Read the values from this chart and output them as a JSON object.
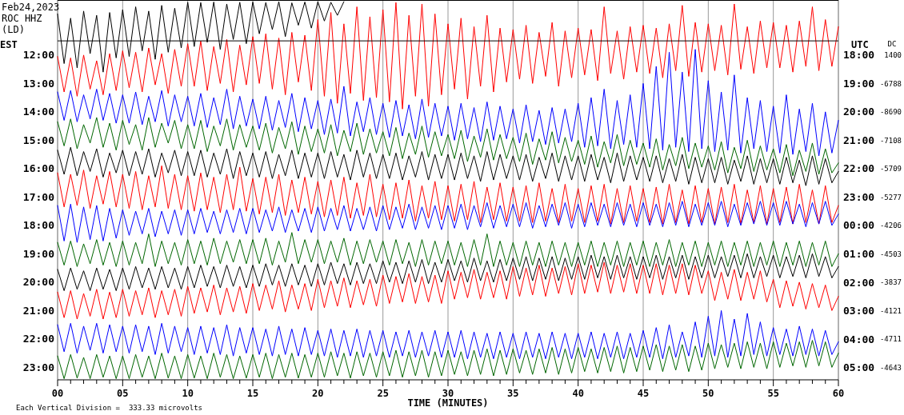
{
  "chart_data": {
    "type": "line",
    "title": "Feb24,2023",
    "subtitle": "ROC HHZ\n(LD)",
    "xlabel": "TIME (MINUTES)",
    "ylabel": "EST",
    "y2label": "UTC",
    "y3label": "DC",
    "annotations": [
      "Each Vertical Division =  333.33 microvolts",
      "1400",
      "-6788",
      "-8690",
      "-7108",
      "-5709",
      "-5277",
      "-4206",
      "-4503",
      "-3837",
      "-4121",
      "-4711",
      "-4643"
    ],
    "grid": "x",
    "xlim": [
      0,
      60
    ],
    "xticks": [
      {
        "value": 0,
        "label": "00"
      },
      {
        "value": 1,
        "label": null
      },
      {
        "value": 2,
        "label": null
      },
      {
        "value": 3,
        "label": null
      },
      {
        "value": 4,
        "label": null
      },
      {
        "value": 5,
        "label": "05"
      },
      {
        "value": 6,
        "label": null
      },
      {
        "value": 7,
        "label": null
      },
      {
        "value": 8,
        "label": null
      },
      {
        "value": 9,
        "label": null
      },
      10,
      {
        "value": 11,
        "label": null
      },
      {
        "value": 12,
        "label": null
      },
      {
        "value": 13,
        "label": null
      },
      {
        "value": 14,
        "label": null
      },
      15,
      {
        "value": 16,
        "label": null
      },
      {
        "value": 17,
        "label": null
      },
      {
        "value": 18,
        "label": null
      },
      {
        "value": 19,
        "label": null
      },
      20,
      {
        "value": 21,
        "label": null
      },
      {
        "value": 22,
        "label": null
      },
      {
        "value": 23,
        "label": null
      },
      {
        "value": 24,
        "label": null
      },
      25,
      {
        "value": 26,
        "label": null
      },
      {
        "value": 27,
        "label": null
      },
      {
        "value": 28,
        "label": null
      },
      {
        "value": 29,
        "label": null
      },
      30,
      {
        "value": 31,
        "label": null
      },
      {
        "value": 32,
        "label": null
      },
      {
        "value": 33,
        "label": null
      },
      {
        "value": 34,
        "label": null
      },
      35,
      {
        "value": 36,
        "label": null
      },
      {
        "value": 37,
        "label": null
      },
      {
        "value": 38,
        "label": null
      },
      {
        "value": 39,
        "label": null
      },
      40,
      {
        "value": 41,
        "label": null
      },
      {
        "value": 42,
        "label": null
      },
      {
        "value": 43,
        "label": null
      },
      {
        "value": 44,
        "label": null
      },
      45,
      {
        "value": 46,
        "label": null
      },
      {
        "value": 47,
        "label": null
      },
      {
        "value": 48,
        "label": null
      },
      {
        "value": 49,
        "label": null
      },
      50,
      {
        "value": 51,
        "label": null
      },
      {
        "value": 52,
        "label": null
      },
      {
        "value": 53,
        "label": null
      },
      {
        "value": 54,
        "label": null
      },
      55,
      {
        "value": 56,
        "label": null
      },
      {
        "value": 57,
        "label": null
      },
      {
        "value": 58,
        "label": null
      },
      {
        "value": 59,
        "label": null
      },
      60
    ],
    "ylim": [
      23.44,
      10.06
    ],
    "yticks": [
      {
        "value": 12,
        "label": "12:00"
      },
      {
        "value": 13,
        "label": "13:00"
      },
      {
        "value": 14,
        "label": "14:00"
      },
      {
        "value": 15,
        "label": "15:00"
      },
      {
        "value": 16,
        "label": "16:00"
      },
      {
        "value": 17,
        "label": "17:00"
      },
      {
        "value": 18,
        "label": "18:00"
      },
      {
        "value": 19,
        "label": "19:00"
      },
      {
        "value": 20,
        "label": "20:00"
      },
      {
        "value": 21,
        "label": "21:00"
      },
      {
        "value": 22,
        "label": "22:00"
      },
      {
        "value": 23,
        "label": "23:00"
      }
    ],
    "y2lim": [
      "2023-02-25T05:26",
      "2023-02-24T16:04"
    ],
    "y2ticks": [
      {
        "value": "2023-02-24T18:00",
        "label": "18:00"
      },
      {
        "value": "2023-02-24T19:00",
        "label": "19:00"
      },
      {
        "value": "2023-02-24T20:00",
        "label": "20:00"
      },
      {
        "value": "2023-02-24T21:00",
        "label": "21:00"
      },
      {
        "value": "2023-02-24T22:00",
        "label": "22:00"
      },
      {
        "value": "2023-02-24T23:00",
        "label": "23:00"
      },
      {
        "value": "2023-02-25T00:00",
        "label": "00:00"
      },
      {
        "value": "2023-02-25T01:00",
        "label": "01:00"
      },
      {
        "value": "2023-02-25T02:00",
        "label": "02:00"
      },
      {
        "value": "2023-02-25T03:00",
        "label": "03:00"
      },
      {
        "value": "2023-02-25T04:00",
        "label": "04:00"
      },
      {
        "value": "2023-02-25T05:00",
        "label": "05:00"
      }
    ],
    "ref_lines": [
      {
        "axis": "y",
        "value": 11.5,
        "color": "#000000"
      }
    ],
    "x": [
      0,
      0.5,
      1,
      1.5,
      2,
      2.5,
      3,
      3.5,
      4,
      4.5,
      5,
      5.5,
      6,
      6.5,
      7,
      7.5,
      8,
      8.5,
      9,
      9.5,
      10,
      10.5,
      11,
      11.5,
      12,
      12.5,
      13,
      13.5,
      14,
      14.5,
      15,
      15.5,
      16,
      16.5,
      17,
      17.5,
      18,
      18.5,
      19,
      19.5,
      20,
      20.5,
      21,
      21.5,
      22,
      22.5,
      23,
      23.5,
      24,
      24.5,
      25,
      25.5,
      26,
      26.5,
      27,
      27.5,
      28,
      28.5,
      29,
      29.5,
      30,
      30.5,
      31,
      31.5,
      32,
      32.5,
      33,
      33.5,
      34,
      34.5,
      35,
      35.5,
      36,
      36.5,
      37,
      37.5,
      38,
      38.5,
      39,
      39.5,
      40,
      40.5,
      41,
      41.5,
      42,
      42.5,
      43,
      43.5,
      44,
      44.5,
      45,
      45.5,
      46,
      46.5,
      47,
      47.5,
      48,
      48.5,
      49,
      49.5,
      50,
      50.5,
      51,
      51.5,
      52,
      52.5,
      53,
      53.5,
      54,
      54.5,
      55,
      55.5,
      56,
      56.5,
      57,
      57.5,
      58,
      58.5,
      59,
      59.5,
      60
    ],
    "series": [
      {
        "color": "#000000",
        "x": [
          0,
          0.5,
          1,
          1.5,
          2,
          2.5,
          3,
          3.5,
          4,
          4.5,
          5,
          5.5,
          6,
          6.5,
          7,
          7.5,
          8,
          8.5,
          9,
          9.5,
          10,
          10.5,
          11,
          11.5,
          12,
          12.5,
          13,
          13.5,
          14,
          14.5,
          15,
          15.5,
          16,
          16.5,
          17,
          17.5,
          18,
          18.5,
          19,
          19.5,
          20,
          20.5,
          21,
          21.5,
          22
        ],
        "values": [
          10.55,
          12.3,
          10.7,
          12.45,
          10.45,
          11.95,
          10.6,
          12.6,
          10.5,
          12.1,
          10.4,
          12.05,
          10.3,
          11.85,
          10.45,
          12.15,
          10.25,
          11.9,
          10.35,
          11.75,
          10.14,
          11.7,
          10.15,
          11.55,
          10.13,
          11.8,
          10.2,
          11.45,
          10.14,
          11.6,
          10.13,
          11.25,
          10.15,
          11.1,
          10.12,
          11.35,
          10.16,
          10.95,
          10.13,
          11.05,
          10.12,
          10.8,
          10.14,
          10.6,
          10.12
        ]
      },
      {
        "color": "#ff0000",
        "values": [
          12.05,
          13.3,
          12.1,
          13.45,
          12.0,
          13.2,
          12.2,
          13.4,
          11.95,
          13.25,
          11.85,
          13.15,
          11.9,
          13.3,
          11.75,
          13.05,
          11.95,
          13.35,
          11.8,
          13.1,
          11.6,
          13.1,
          11.5,
          13.25,
          11.7,
          13.0,
          11.45,
          13.3,
          11.65,
          13.05,
          11.35,
          13.0,
          11.25,
          13.2,
          11.4,
          13.4,
          11.2,
          12.95,
          11.3,
          13.25,
          10.75,
          13.45,
          10.5,
          13.7,
          10.9,
          13.35,
          10.3,
          13.6,
          10.65,
          13.5,
          10.4,
          13.65,
          10.15,
          13.9,
          10.6,
          13.45,
          10.2,
          13.8,
          10.55,
          13.4,
          10.9,
          13.2,
          10.7,
          13.55,
          11.0,
          13.1,
          10.6,
          13.3,
          11.05,
          12.95,
          11.1,
          12.85,
          10.95,
          13.0,
          11.2,
          12.75,
          10.85,
          13.1,
          11.15,
          12.8,
          11.05,
          12.7,
          11.1,
          12.9,
          10.3,
          12.65,
          11.15,
          12.85,
          11.0,
          12.6,
          10.95,
          12.65,
          11.05,
          12.8,
          10.9,
          12.55,
          10.25,
          12.75,
          10.85,
          12.6,
          10.9,
          12.55,
          10.95,
          12.7,
          10.2,
          12.5,
          11.0,
          12.65,
          10.8,
          12.45,
          10.85,
          12.45,
          10.95,
          12.6,
          10.8,
          12.4,
          10.3,
          12.55,
          10.75,
          12.4,
          11.0
        ]
      },
      {
        "color": "#0000ff",
        "values": [
          13.3,
          14.3,
          13.25,
          14.35,
          13.4,
          14.25,
          13.2,
          14.3,
          13.35,
          14.4,
          13.4,
          14.4,
          13.3,
          14.45,
          13.45,
          14.35,
          13.25,
          14.5,
          13.4,
          14.35,
          13.45,
          14.5,
          13.35,
          14.55,
          13.5,
          14.45,
          13.2,
          14.6,
          13.45,
          14.5,
          13.55,
          14.6,
          13.45,
          14.65,
          13.6,
          14.55,
          13.35,
          14.7,
          13.5,
          14.6,
          13.6,
          14.8,
          13.55,
          14.75,
          13.1,
          14.85,
          13.65,
          14.7,
          13.5,
          14.8,
          13.7,
          14.9,
          13.6,
          14.85,
          13.75,
          14.95,
          13.55,
          14.9,
          13.7,
          14.85,
          13.8,
          15.0,
          13.7,
          14.95,
          13.85,
          15.05,
          13.65,
          15.0,
          13.8,
          14.95,
          13.9,
          15.1,
          13.75,
          15.05,
          13.95,
          15.15,
          13.85,
          15.1,
          13.9,
          15.05,
          13.7,
          15.25,
          13.5,
          15.2,
          13.2,
          15.3,
          13.6,
          15.15,
          13.4,
          15.25,
          13.0,
          15.3,
          12.4,
          15.35,
          11.9,
          15.25,
          12.6,
          15.4,
          11.8,
          15.3,
          12.9,
          15.4,
          13.3,
          15.35,
          12.7,
          15.45,
          13.5,
          15.3,
          13.6,
          15.4,
          13.8,
          15.45,
          13.4,
          15.5,
          13.9,
          15.4,
          13.7,
          15.55,
          14.0,
          15.45,
          14.3
        ]
      },
      {
        "color": "#006600",
        "values": [
          14.35,
          15.2,
          14.25,
          15.3,
          14.45,
          15.1,
          14.2,
          15.25,
          14.4,
          15.35,
          14.3,
          15.15,
          14.45,
          15.35,
          14.2,
          15.25,
          14.4,
          15.1,
          14.3,
          15.3,
          14.45,
          15.3,
          14.3,
          15.4,
          14.5,
          15.2,
          14.25,
          15.35,
          14.45,
          15.25,
          14.5,
          15.35,
          14.4,
          15.45,
          14.55,
          15.3,
          14.35,
          15.5,
          14.5,
          15.4,
          14.6,
          15.45,
          14.45,
          15.55,
          14.65,
          15.4,
          14.4,
          15.5,
          14.6,
          15.45,
          14.7,
          15.55,
          14.55,
          15.65,
          14.75,
          15.5,
          14.5,
          15.6,
          14.7,
          15.55,
          14.8,
          15.65,
          14.65,
          15.75,
          14.85,
          15.6,
          14.6,
          15.7,
          14.8,
          15.65,
          14.9,
          15.75,
          14.75,
          15.85,
          14.95,
          15.7,
          14.7,
          15.8,
          14.9,
          15.75,
          15.0,
          15.85,
          14.85,
          15.95,
          15.05,
          15.8,
          14.8,
          15.9,
          15.0,
          15.85,
          15.1,
          15.95,
          14.95,
          16.05,
          15.15,
          15.9,
          14.9,
          16.0,
          15.1,
          15.95,
          15.2,
          16.05,
          15.05,
          16.15,
          15.25,
          16.0,
          15.0,
          16.1,
          15.2,
          16.05,
          15.3,
          16.15,
          15.15,
          16.25,
          15.35,
          16.1,
          15.1,
          16.2,
          15.3,
          16.15,
          15.8
        ]
      },
      {
        "color": "#000000",
        "values": [
          15.35,
          16.2,
          15.25,
          16.25,
          15.4,
          16.1,
          15.3,
          16.3,
          15.45,
          16.15,
          15.35,
          16.25,
          15.4,
          16.2,
          15.3,
          16.3,
          15.45,
          16.15,
          15.35,
          16.25,
          15.4,
          16.25,
          15.35,
          16.3,
          15.45,
          16.2,
          15.3,
          16.35,
          15.4,
          16.25,
          15.45,
          16.3,
          15.4,
          16.35,
          15.5,
          16.25,
          15.35,
          16.35,
          15.45,
          16.3,
          15.45,
          16.35,
          15.4,
          16.3,
          15.5,
          16.4,
          15.35,
          16.3,
          15.45,
          16.35,
          15.5,
          16.35,
          15.45,
          16.4,
          15.55,
          16.3,
          15.4,
          16.4,
          15.5,
          16.35,
          15.5,
          16.4,
          15.45,
          16.35,
          15.55,
          16.45,
          15.4,
          16.4,
          15.5,
          16.35,
          15.55,
          16.4,
          15.5,
          16.45,
          15.6,
          16.35,
          15.45,
          16.45,
          15.55,
          16.4,
          15.55,
          16.45,
          15.5,
          16.4,
          15.6,
          16.5,
          15.45,
          16.45,
          15.55,
          16.4,
          15.6,
          16.45,
          15.55,
          16.5,
          15.65,
          16.45,
          15.5,
          16.55,
          15.6,
          16.5,
          15.65,
          16.5,
          15.6,
          16.55,
          15.7,
          16.45,
          15.55,
          16.55,
          15.65,
          16.5,
          15.65,
          16.55,
          15.6,
          16.5,
          15.7,
          16.6,
          15.55,
          16.55,
          15.65,
          16.5,
          16.1
        ]
      },
      {
        "color": "#ff0000",
        "values": [
          16.15,
          17.35,
          16.2,
          17.3,
          16.05,
          17.4,
          16.25,
          17.25,
          16.1,
          17.35,
          16.2,
          17.4,
          16.1,
          17.45,
          16.25,
          17.35,
          15.9,
          17.4,
          16.2,
          17.45,
          16.25,
          17.5,
          16.15,
          17.45,
          16.3,
          17.55,
          16.2,
          17.45,
          15.95,
          17.5,
          16.35,
          17.6,
          16.3,
          17.55,
          16.2,
          17.65,
          16.4,
          17.55,
          16.3,
          17.6,
          16.45,
          17.7,
          16.4,
          17.65,
          16.3,
          17.75,
          16.5,
          17.65,
          16.2,
          17.7,
          16.55,
          17.8,
          16.5,
          17.75,
          16.4,
          17.85,
          16.6,
          17.75,
          16.45,
          17.8,
          16.6,
          17.85,
          16.55,
          17.8,
          16.45,
          17.9,
          16.65,
          17.8,
          16.5,
          17.85,
          16.65,
          17.85,
          16.6,
          17.9,
          16.5,
          17.85,
          16.7,
          17.9,
          16.55,
          17.85,
          16.7,
          17.9,
          16.6,
          17.85,
          16.55,
          17.95,
          16.7,
          17.9,
          16.6,
          17.85,
          16.7,
          17.9,
          16.65,
          17.95,
          16.55,
          17.9,
          16.75,
          17.95,
          16.6,
          17.9,
          16.7,
          17.95,
          16.65,
          17.9,
          16.55,
          17.95,
          16.75,
          17.9,
          16.6,
          17.95,
          16.7,
          17.9,
          16.65,
          17.95,
          16.55,
          17.9,
          16.75,
          17.95,
          16.6,
          17.9,
          17.3
        ]
      },
      {
        "color": "#0000ff",
        "values": [
          17.3,
          18.55,
          17.25,
          18.6,
          17.35,
          18.5,
          17.3,
          18.55,
          17.4,
          18.45,
          17.45,
          18.35,
          17.5,
          18.3,
          17.4,
          18.4,
          17.5,
          18.3,
          17.45,
          18.35,
          17.45,
          18.3,
          17.4,
          18.25,
          17.5,
          18.3,
          17.45,
          18.25,
          17.4,
          18.3,
          17.4,
          18.25,
          17.45,
          18.2,
          17.35,
          18.25,
          17.45,
          18.2,
          17.4,
          18.25,
          17.35,
          18.2,
          17.4,
          18.15,
          17.3,
          18.2,
          17.4,
          18.15,
          17.35,
          18.2,
          17.3,
          18.15,
          17.35,
          18.1,
          17.25,
          18.15,
          17.35,
          18.1,
          17.3,
          18.15,
          17.3,
          18.1,
          17.25,
          18.15,
          17.3,
          18.05,
          17.2,
          18.1,
          17.3,
          18.05,
          17.25,
          18.05,
          17.2,
          18.1,
          17.3,
          18.05,
          17.25,
          18.0,
          17.2,
          18.1,
          17.25,
          18.05,
          17.2,
          18.0,
          17.25,
          18.05,
          17.2,
          18.0,
          17.25,
          18.05,
          17.2,
          18.0,
          17.25,
          18.05,
          17.2,
          18.0,
          17.15,
          18.05,
          17.25,
          18.0,
          17.2,
          18.0,
          17.15,
          18.05,
          17.25,
          18.0,
          17.2,
          17.95,
          17.15,
          18.0,
          17.2,
          18.0,
          17.15,
          17.95,
          17.25,
          18.05,
          17.2,
          17.95,
          17.15,
          18.0,
          17.6
        ]
      },
      {
        "color": "#006600",
        "values": [
          18.6,
          19.4,
          18.55,
          19.45,
          18.65,
          19.35,
          18.5,
          19.4,
          18.6,
          19.45,
          18.55,
          19.4,
          18.6,
          19.35,
          18.3,
          19.45,
          18.55,
          19.35,
          18.6,
          19.4,
          18.5,
          19.35,
          18.55,
          19.4,
          18.45,
          19.35,
          18.55,
          19.3,
          18.5,
          19.35,
          18.5,
          19.35,
          18.45,
          19.4,
          18.55,
          19.3,
          18.25,
          19.35,
          18.5,
          19.3,
          18.5,
          19.35,
          18.55,
          19.3,
          18.45,
          19.4,
          18.55,
          19.35,
          18.5,
          19.3,
          18.55,
          19.4,
          18.5,
          19.35,
          18.6,
          19.45,
          18.5,
          19.4,
          18.55,
          19.35,
          18.55,
          19.4,
          18.6,
          19.45,
          18.5,
          19.4,
          18.3,
          19.45,
          18.55,
          19.4,
          18.6,
          19.45,
          18.55,
          19.4,
          18.6,
          19.45,
          18.55,
          19.4,
          18.6,
          19.45,
          18.6,
          19.4,
          18.55,
          19.45,
          18.6,
          19.4,
          18.55,
          19.45,
          18.6,
          19.4,
          18.55,
          19.45,
          18.6,
          19.4,
          18.5,
          19.45,
          18.6,
          19.4,
          18.55,
          19.45,
          18.6,
          19.4,
          18.55,
          19.45,
          18.6,
          19.4,
          18.55,
          19.45,
          18.6,
          19.4,
          18.55,
          19.45,
          18.6,
          19.4,
          18.55,
          19.45,
          18.6,
          19.4,
          18.55,
          19.45,
          19.0
        ]
      },
      {
        "color": "#000000",
        "values": [
          19.55,
          20.3,
          19.5,
          20.25,
          19.6,
          20.3,
          19.5,
          20.25,
          19.55,
          20.3,
          19.5,
          20.25,
          19.45,
          20.2,
          19.5,
          20.25,
          19.45,
          20.2,
          19.5,
          20.25,
          19.45,
          20.2,
          19.4,
          20.15,
          19.45,
          20.2,
          19.4,
          20.15,
          19.45,
          20.2,
          19.4,
          20.15,
          19.35,
          20.1,
          19.4,
          20.15,
          19.35,
          20.1,
          19.4,
          20.15,
          19.35,
          20.1,
          19.3,
          20.05,
          19.35,
          20.1,
          19.3,
          20.05,
          19.35,
          20.05,
          19.25,
          20.0,
          19.3,
          20.05,
          19.25,
          20.0,
          19.2,
          20.05,
          19.3,
          20.0,
          19.2,
          19.95,
          19.25,
          20.0,
          19.15,
          19.95,
          19.25,
          20.0,
          19.2,
          19.95,
          19.15,
          19.9,
          19.1,
          19.95,
          19.15,
          19.9,
          19.1,
          19.95,
          19.15,
          19.9,
          19.1,
          19.9,
          19.05,
          19.85,
          19.1,
          19.9,
          19.05,
          19.85,
          19.1,
          19.9,
          19.1,
          19.85,
          19.05,
          19.9,
          19.1,
          19.85,
          19.05,
          19.9,
          19.1,
          19.85,
          19.05,
          19.85,
          19.1,
          19.8,
          19.05,
          19.85,
          19.0,
          19.85,
          19.1,
          19.8,
          19.05,
          19.85,
          19.1,
          19.8,
          19.05,
          19.85,
          19.0,
          19.8,
          19.1,
          19.85,
          19.45
        ]
      },
      {
        "color": "#ff0000",
        "values": [
          20.35,
          21.25,
          20.3,
          21.3,
          20.4,
          21.2,
          20.25,
          21.3,
          20.35,
          21.25,
          20.25,
          21.2,
          20.3,
          21.15,
          20.2,
          21.25,
          20.3,
          21.15,
          20.25,
          21.2,
          20.15,
          21.1,
          20.2,
          21.05,
          20.1,
          21.15,
          20.2,
          21.05,
          20.15,
          21.1,
          20.05,
          21.0,
          20.1,
          20.95,
          19.95,
          21.05,
          20.1,
          20.95,
          20.05,
          21.0,
          19.9,
          20.9,
          19.95,
          20.85,
          19.85,
          20.9,
          19.95,
          20.8,
          19.9,
          20.85,
          19.75,
          20.75,
          19.8,
          20.7,
          19.7,
          20.75,
          19.8,
          20.7,
          19.75,
          20.75,
          19.6,
          20.6,
          19.65,
          20.55,
          19.55,
          20.6,
          19.65,
          20.55,
          19.6,
          20.6,
          19.45,
          20.5,
          19.5,
          20.45,
          19.4,
          20.5,
          19.5,
          20.4,
          19.45,
          20.45,
          19.35,
          20.4,
          19.4,
          20.35,
          19.3,
          20.4,
          19.4,
          20.35,
          19.35,
          20.4,
          19.4,
          20.4,
          19.35,
          20.45,
          19.4,
          20.4,
          19.35,
          20.45,
          19.4,
          20.4,
          19.6,
          20.65,
          19.65,
          20.6,
          19.55,
          20.65,
          19.65,
          20.6,
          19.6,
          20.7,
          19.9,
          20.9,
          19.95,
          20.85,
          20.0,
          20.95,
          20.05,
          20.9,
          20.1,
          21.0,
          20.5
        ]
      },
      {
        "color": "#0000ff",
        "values": [
          21.5,
          22.45,
          21.45,
          22.5,
          21.55,
          22.4,
          21.45,
          22.5,
          21.5,
          22.45,
          21.55,
          22.5,
          21.5,
          22.45,
          21.55,
          22.55,
          21.45,
          22.5,
          21.55,
          22.45,
          21.6,
          22.55,
          21.55,
          22.5,
          21.6,
          22.55,
          21.5,
          22.6,
          21.6,
          22.5,
          21.6,
          22.55,
          21.65,
          22.6,
          21.55,
          22.55,
          21.65,
          22.6,
          21.6,
          22.55,
          21.7,
          22.6,
          21.65,
          22.65,
          21.7,
          22.6,
          21.65,
          22.65,
          21.7,
          22.6,
          21.7,
          22.65,
          21.75,
          22.6,
          21.7,
          22.65,
          21.75,
          22.6,
          21.7,
          22.65,
          21.75,
          22.65,
          21.7,
          22.7,
          21.75,
          22.65,
          21.8,
          22.7,
          21.75,
          22.65,
          21.8,
          22.7,
          21.75,
          22.65,
          21.8,
          22.7,
          21.75,
          22.65,
          21.8,
          22.7,
          21.8,
          22.65,
          21.75,
          22.7,
          21.8,
          22.65,
          21.75,
          22.7,
          21.8,
          22.65,
          21.7,
          22.65,
          21.6,
          22.7,
          21.5,
          22.65,
          21.75,
          22.6,
          21.4,
          22.65,
          21.2,
          22.6,
          21.0,
          22.65,
          21.3,
          22.6,
          21.1,
          22.55,
          21.4,
          22.6,
          21.6,
          22.55,
          21.65,
          22.6,
          21.55,
          22.55,
          21.65,
          22.6,
          21.7,
          22.55,
          22.1
        ]
      },
      {
        "color": "#006600",
        "values": [
          22.6,
          23.4,
          22.55,
          23.38,
          22.65,
          23.4,
          22.55,
          23.35,
          22.6,
          23.4,
          22.6,
          23.4,
          22.55,
          23.35,
          22.6,
          23.4,
          22.5,
          23.38,
          22.6,
          23.4,
          22.55,
          23.38,
          22.6,
          23.4,
          22.5,
          23.35,
          22.55,
          23.4,
          22.6,
          23.38,
          22.55,
          23.35,
          22.5,
          23.4,
          22.55,
          23.35,
          22.5,
          23.38,
          22.55,
          23.35,
          22.5,
          23.35,
          22.45,
          23.3,
          22.5,
          23.38,
          22.45,
          23.3,
          22.5,
          23.35,
          22.45,
          23.3,
          22.4,
          23.35,
          22.45,
          23.3,
          22.4,
          23.35,
          22.45,
          23.3,
          22.4,
          23.25,
          22.45,
          23.3,
          22.4,
          23.25,
          22.35,
          23.3,
          22.4,
          23.25,
          22.35,
          23.2,
          22.4,
          23.25,
          22.35,
          23.2,
          22.3,
          23.25,
          22.35,
          23.2,
          22.3,
          23.15,
          22.35,
          23.2,
          22.3,
          23.15,
          22.25,
          23.2,
          22.3,
          23.15,
          22.25,
          23.1,
          22.2,
          23.15,
          22.25,
          23.1,
          22.2,
          23.15,
          22.25,
          23.1,
          22.15,
          23.05,
          22.2,
          23.0,
          22.15,
          23.05,
          22.1,
          23.0,
          22.15,
          23.05,
          22.1,
          23.0,
          22.15,
          22.95,
          22.1,
          23.0,
          22.05,
          22.95,
          22.1,
          23.0,
          22.5
        ]
      }
    ]
  }
}
